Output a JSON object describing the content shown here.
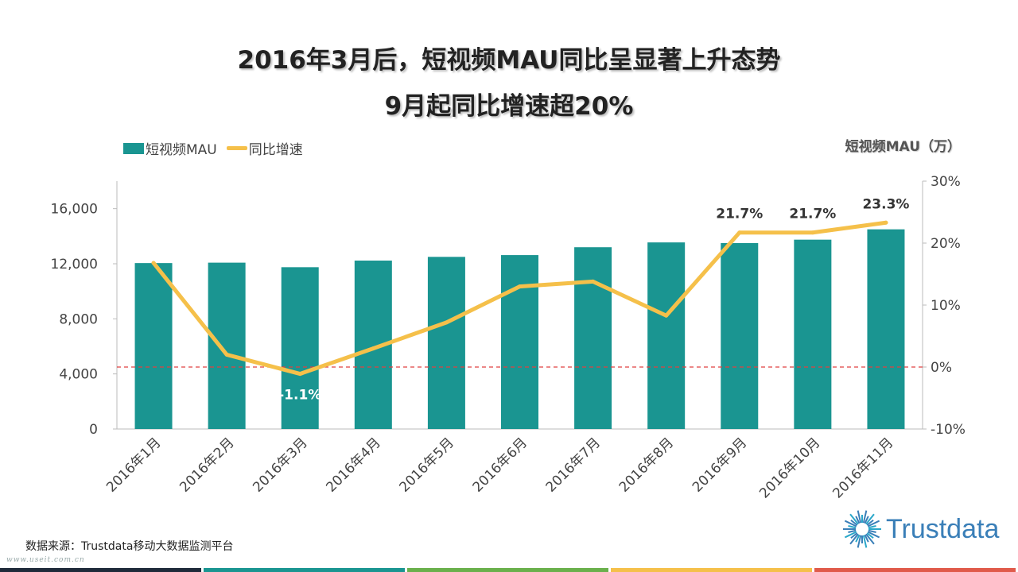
{
  "title_line1": "2016年3月后，短视频MAU同比呈显著上升态势",
  "title_line2": "9月起同比增速超20%",
  "legend": {
    "bar_label": "短视频MAU",
    "line_label": "同比增速"
  },
  "unit_label": "短视频MAU（万）",
  "source": "数据来源：Trustdata移动大数据监测平台",
  "watermark": "www.useit.com.cn",
  "logo_text": "Trustdata",
  "colors": {
    "bar": "#1a9591",
    "line": "#f5c04a",
    "zero_line": "#e04040",
    "axis": "#bbbbbb",
    "logo": "#3a7fb8",
    "footer": [
      "#1f2a3a",
      "#1a9591",
      "#6ab04c",
      "#f5c04a",
      "#e05a4a"
    ]
  },
  "chart_data": {
    "type": "bar+line",
    "categories": [
      "2016年1月",
      "2016年2月",
      "2016年3月",
      "2016年4月",
      "2016年5月",
      "2016年6月",
      "2016年7月",
      "2016年8月",
      "2016年9月",
      "2016年10月",
      "2016年11月"
    ],
    "series": [
      {
        "name": "短视频MAU",
        "type": "bar",
        "axis": "left",
        "values": [
          12050,
          12080,
          11750,
          12230,
          12500,
          12630,
          13200,
          13550,
          13500,
          13750,
          14500
        ]
      },
      {
        "name": "同比增速",
        "type": "line",
        "axis": "right",
        "values": [
          16.8,
          2.0,
          -1.1,
          3.0,
          7.2,
          13.0,
          13.8,
          8.3,
          21.7,
          21.7,
          23.3
        ]
      }
    ],
    "data_labels": [
      {
        "series": "同比增速",
        "index": 2,
        "text": "-1.1%"
      },
      {
        "series": "同比增速",
        "index": 8,
        "text": "21.7%"
      },
      {
        "series": "同比增速",
        "index": 9,
        "text": "21.7%"
      },
      {
        "series": "同比增速",
        "index": 10,
        "text": "23.3%"
      }
    ],
    "y_left": {
      "min": 0,
      "max": 18000,
      "ticks": [
        0,
        4000,
        8000,
        12000,
        16000
      ],
      "tick_labels": [
        "0",
        "4,000",
        "8,000",
        "12,000",
        "16,000"
      ]
    },
    "y_right": {
      "min": -10,
      "max": 30,
      "ticks": [
        -10,
        0,
        10,
        20,
        30
      ],
      "tick_labels": [
        "-10%",
        "0%",
        "10%",
        "20%",
        "30%"
      ]
    },
    "reference_line": {
      "axis": "right",
      "value": 0,
      "style": "dashed"
    },
    "grid": false,
    "legend_position": "top-left"
  }
}
